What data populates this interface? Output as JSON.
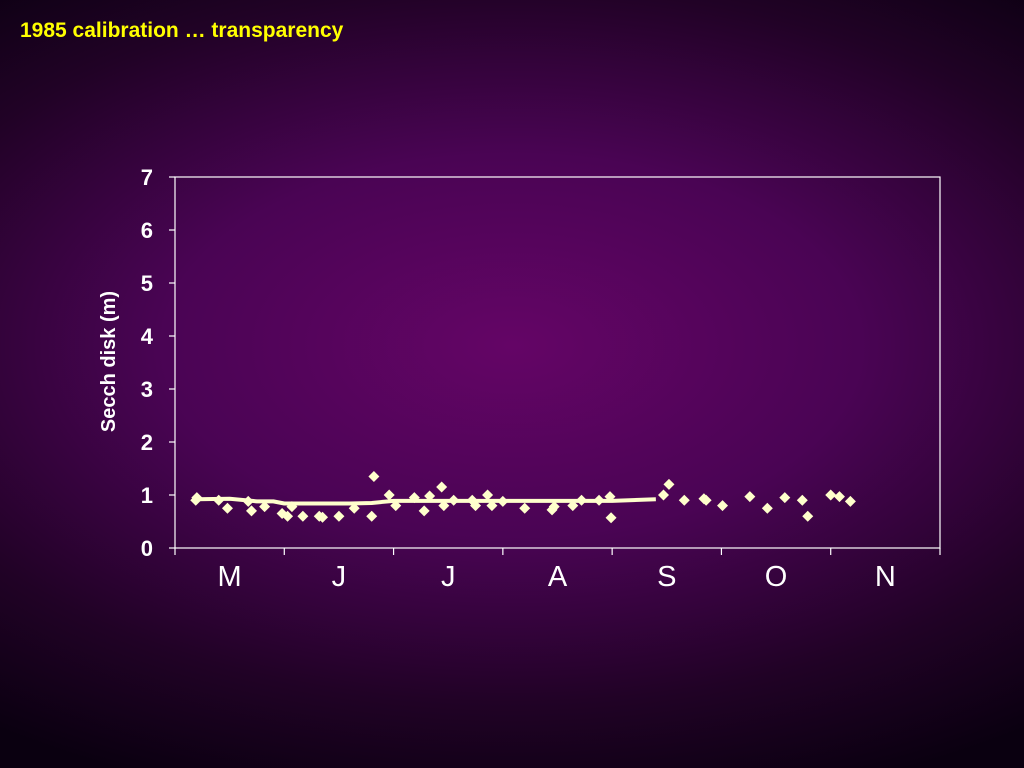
{
  "slide": {
    "title": "1985 calibration … transparency"
  },
  "colors": {
    "title": "#ffff00",
    "axes": "#ffffff",
    "markers": "#ffffcc",
    "trend_line": "#ffffcc"
  },
  "chart_data": {
    "type": "scatter",
    "title": "",
    "xlabel": "",
    "ylabel": "Secch disk (m)",
    "ylim": [
      0,
      7
    ],
    "yticks": [
      0,
      1,
      2,
      3,
      4,
      5,
      6,
      7
    ],
    "xlim": [
      0,
      7
    ],
    "categories": [
      "M",
      "J",
      "J",
      "A",
      "S",
      "O",
      "N"
    ],
    "marker": "diamond",
    "grid": false,
    "legend": "none",
    "series": [
      {
        "kind": "points",
        "x": [
          0.19,
          0.2,
          0.4,
          0.48,
          0.67,
          0.7,
          0.82,
          0.98,
          1.03,
          1.07,
          1.17,
          1.32,
          1.35,
          1.5,
          1.64,
          1.8,
          1.82,
          1.96,
          2.02,
          2.19,
          2.28,
          2.33,
          2.44,
          2.46,
          2.55,
          2.72,
          2.75,
          2.86,
          2.9,
          3.0,
          3.2,
          3.45,
          3.47,
          3.64,
          3.72,
          3.88,
          3.98,
          3.99,
          4.47,
          4.52,
          4.66,
          4.84,
          4.86,
          5.01,
          5.26,
          5.42,
          5.58,
          5.74,
          5.79,
          6.0,
          6.08,
          6.18
        ],
        "y": [
          0.9,
          0.95,
          0.9,
          0.75,
          0.88,
          0.7,
          0.78,
          0.65,
          0.6,
          0.78,
          0.6,
          0.6,
          0.58,
          0.6,
          0.75,
          0.6,
          1.35,
          1.0,
          0.8,
          0.95,
          0.7,
          0.98,
          1.15,
          0.8,
          0.9,
          0.9,
          0.8,
          1.0,
          0.8,
          0.88,
          0.75,
          0.72,
          0.78,
          0.8,
          0.9,
          0.9,
          0.97,
          0.57,
          1.0,
          1.2,
          0.9,
          0.93,
          0.9,
          0.8,
          0.97,
          0.75,
          0.95,
          0.9,
          0.6,
          1.0,
          0.97,
          0.88
        ]
      },
      {
        "kind": "line",
        "x": [
          0.2,
          0.5,
          0.75,
          0.9,
          1.0,
          1.3,
          1.6,
          1.8,
          2.0,
          2.5,
          3.0,
          3.5,
          4.0,
          4.4
        ],
        "y": [
          0.92,
          0.93,
          0.88,
          0.88,
          0.84,
          0.84,
          0.84,
          0.85,
          0.89,
          0.89,
          0.89,
          0.89,
          0.89,
          0.92
        ]
      }
    ]
  }
}
